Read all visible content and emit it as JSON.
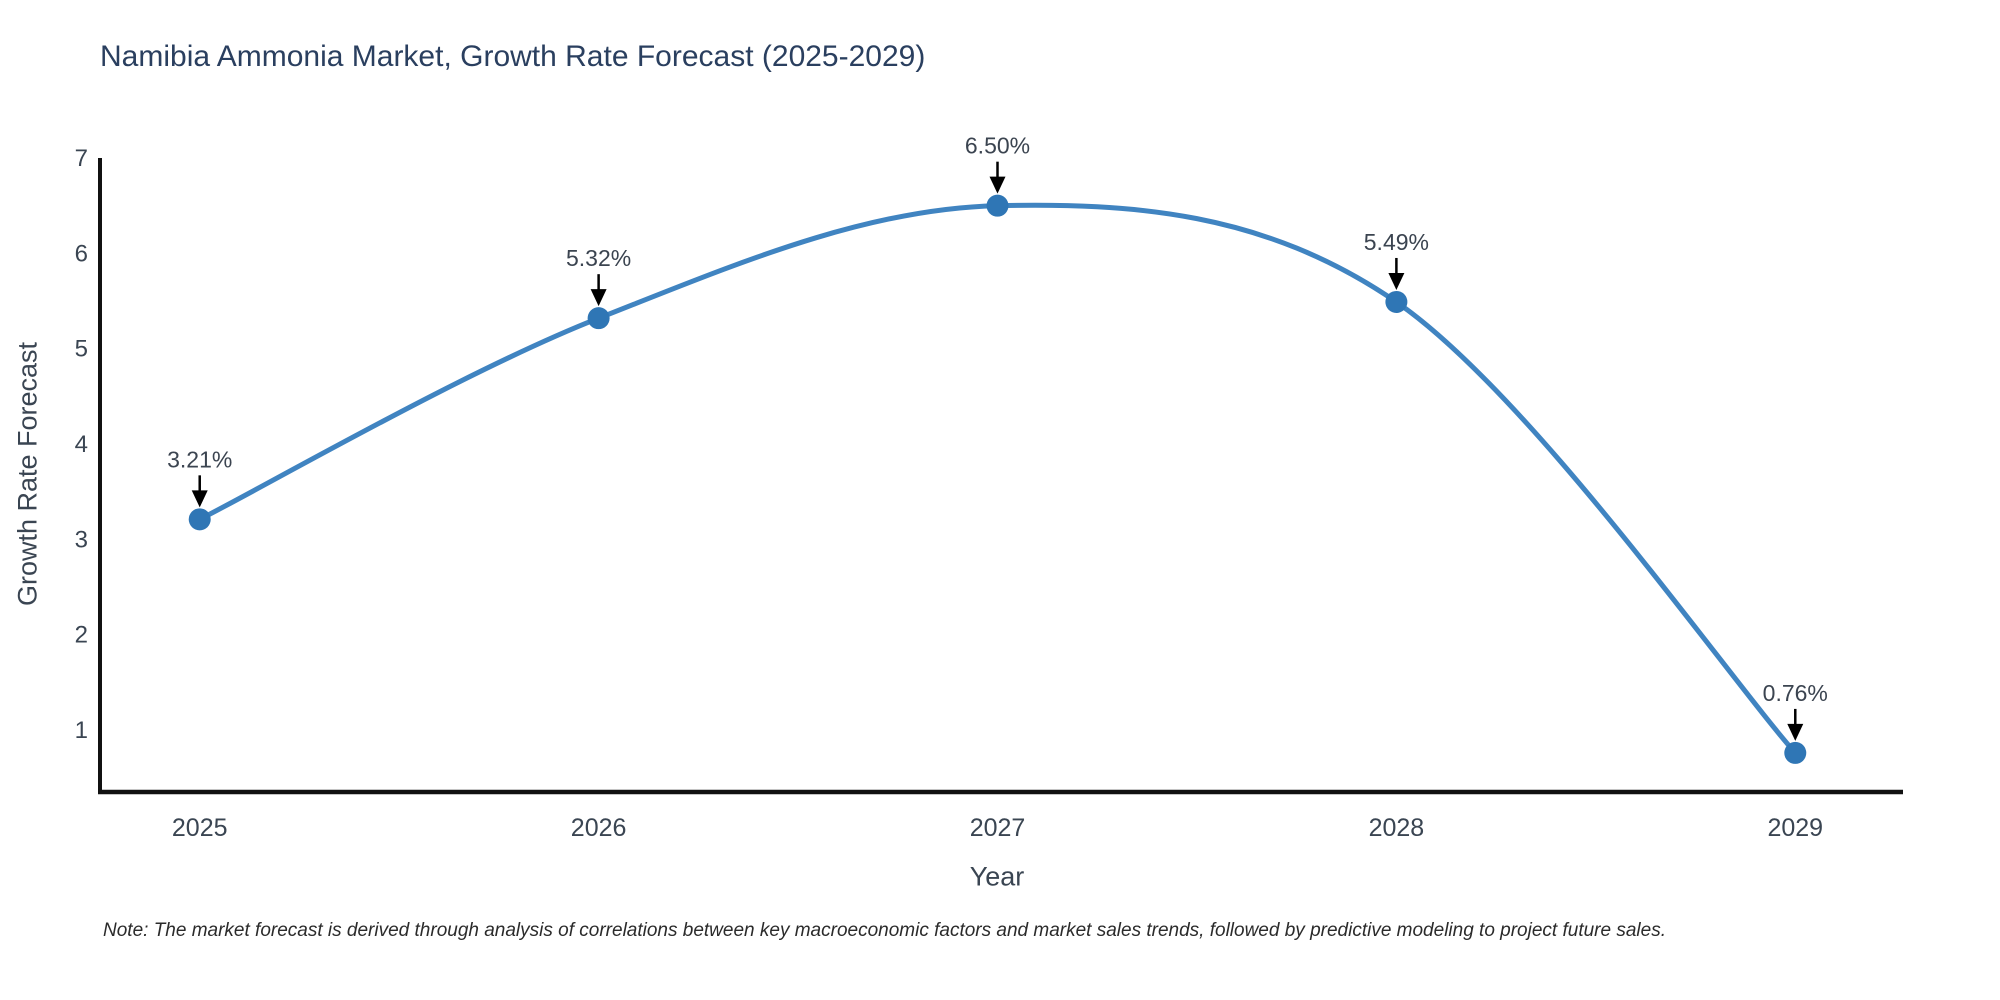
{
  "page": {
    "title": "Namibia Ammonia Market, Growth Rate Forecast (2025-2029)",
    "note": "Note: The market forecast is derived through analysis of correlations between key macroeconomic factors and market sales trends, followed by predictive modeling to project future sales."
  },
  "chart_data": {
    "type": "line",
    "title": "Namibia Ammonia Market, Growth Rate Forecast (2025-2029)",
    "xlabel": "Year",
    "ylabel": "Growth Rate Forecast",
    "categories": [
      "2025",
      "2026",
      "2027",
      "2028",
      "2029"
    ],
    "x": [
      2025,
      2026,
      2027,
      2028,
      2029
    ],
    "values": [
      3.21,
      5.32,
      6.5,
      5.49,
      0.76
    ],
    "point_labels": [
      "3.21%",
      "5.32%",
      "6.50%",
      "5.49%",
      "0.76%"
    ],
    "xlim": [
      2024.75,
      2029.25
    ],
    "ylim": [
      0.35,
      7
    ],
    "yticks": [
      1,
      2,
      3,
      4,
      5,
      6,
      7
    ],
    "line_shape": "spline",
    "grid": false,
    "legend": "none",
    "annotation_style": "value-label-with-down-arrow",
    "colors": {
      "line": "#4084c1",
      "marker": "#2f76b5",
      "axis": "#111111",
      "tick_text": "#3a4552",
      "annotation_text": "#3b4450",
      "arrow": "#000000",
      "title_text": "#2a3f5f",
      "background": "#ffffff"
    }
  }
}
